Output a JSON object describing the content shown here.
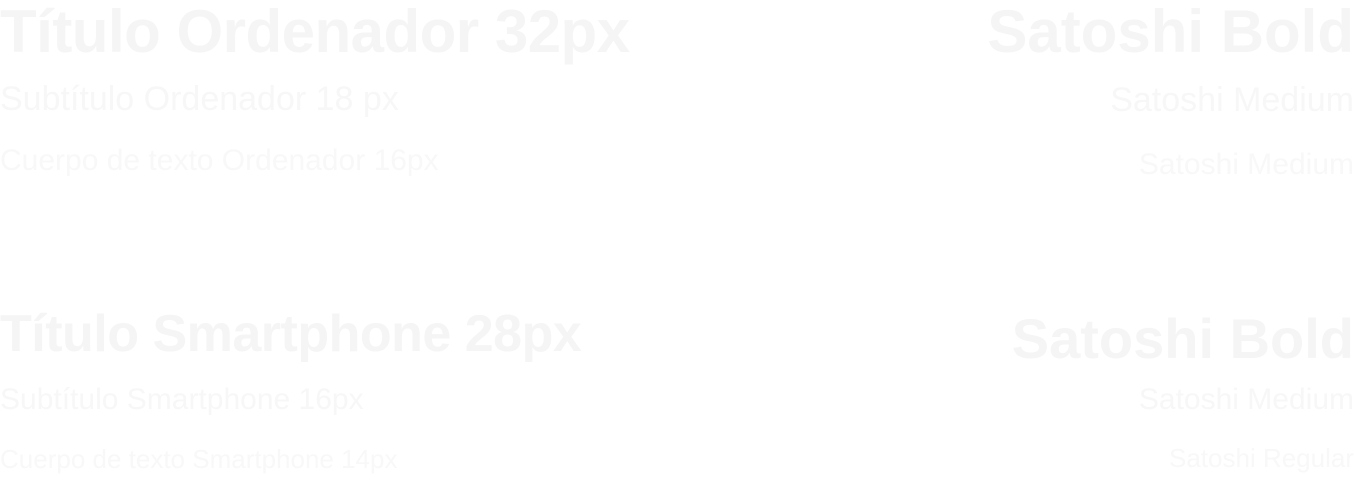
{
  "desktop": {
    "title": "Título Ordenador 32px",
    "subtitle": "Subtítulo Ordenador 18 px",
    "body": "Cuerpo de texto Ordenador 16px",
    "title_font": "Satoshi Bold",
    "subtitle_font": "Satoshi Medium",
    "body_font": "Satoshi Medium"
  },
  "smartphone": {
    "title": "Título Smartphone 28px",
    "subtitle": "Subtítulo Smartphone 16px",
    "body": "Cuerpo de texto Smartphone 14px",
    "title_font": "Satoshi Bold",
    "subtitle_font": "Satoshi Medium",
    "body_font": "Satoshi Regular"
  }
}
